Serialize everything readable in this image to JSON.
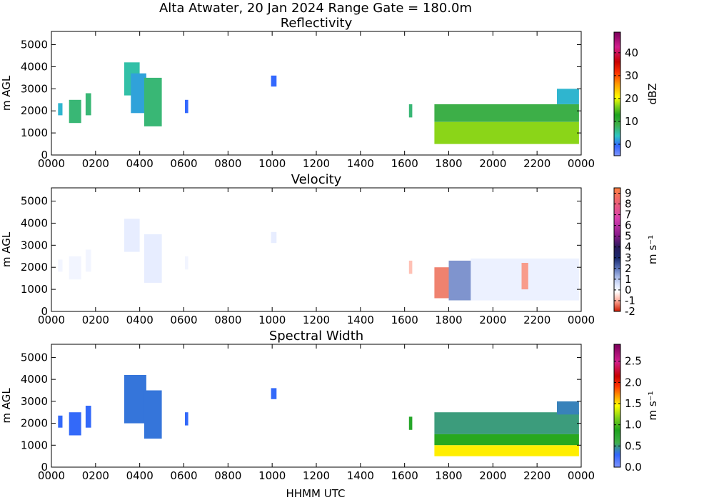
{
  "suptitle": "Alta Atwater, 20 Jan 2024 Range Gate = 180.0m",
  "x_ticks": [
    "0000",
    "0200",
    "0400",
    "0600",
    "0800",
    "1000",
    "1200",
    "1400",
    "1600",
    "1800",
    "2000",
    "2200",
    "0000"
  ],
  "y_ticks": [
    "0",
    "1000",
    "2000",
    "3000",
    "4000",
    "5000"
  ],
  "ylabel": "m AGL",
  "xlabel": "HHMM UTC",
  "colors": {
    "reflectivity_scale": [
      "#7f95ff",
      "#3366ff",
      "#2ec5c5",
      "#3fb04a",
      "#1ea31e",
      "#7fd11a",
      "#ffff00",
      "#ff9a00",
      "#ff3300",
      "#c80000",
      "#d21f8e",
      "#7a005a"
    ],
    "velocity_scale": [
      "#cc1a00",
      "#ffb0a0",
      "#ffffff",
      "#e0e8ff",
      "#a8b9e6",
      "#5a72b8",
      "#1a2a6e",
      "#2a1a5a",
      "#8b1a8b",
      "#d83fb0",
      "#ff8040"
    ],
    "spectral_width_scale": [
      "#7f95ff",
      "#3366ff",
      "#3fb04a",
      "#1ea31e",
      "#7fd11a",
      "#ffff00",
      "#ff9a00",
      "#ff3300",
      "#c80000",
      "#d21f8e",
      "#7a005a"
    ]
  },
  "chart_data": [
    {
      "type": "heatmap",
      "title": "Reflectivity",
      "xlabel": "",
      "ylabel": "m AGL",
      "ylim": [
        0,
        5600
      ],
      "colorbar": {
        "label": "dBZ",
        "range": [
          -5,
          49
        ],
        "ticks": [
          "0",
          "10",
          "20",
          "30",
          "40"
        ],
        "tick_values": [
          0,
          10,
          20,
          30,
          40
        ]
      },
      "regions": [
        {
          "t0": 0.3,
          "t1": 0.5,
          "h0": 1800,
          "h1": 2350,
          "value": 4
        },
        {
          "t0": 0.8,
          "t1": 1.35,
          "h0": 1450,
          "h1": 2500,
          "value": 8
        },
        {
          "t0": 1.55,
          "t1": 1.8,
          "h0": 1800,
          "h1": 2800,
          "value": 8
        },
        {
          "t0": 3.3,
          "t1": 4.0,
          "h0": 2700,
          "h1": 4200,
          "value": 6
        },
        {
          "t0": 3.6,
          "t1": 4.3,
          "h0": 1900,
          "h1": 3700,
          "value": 3
        },
        {
          "t0": 4.2,
          "t1": 5.0,
          "h0": 1300,
          "h1": 3500,
          "value": 8
        },
        {
          "t0": 6.05,
          "t1": 6.2,
          "h0": 1900,
          "h1": 2500,
          "value": 0
        },
        {
          "t0": 9.95,
          "t1": 10.2,
          "h0": 3100,
          "h1": 3600,
          "value": 0
        },
        {
          "t0": 16.2,
          "t1": 16.35,
          "h0": 1700,
          "h1": 2300,
          "value": 8
        },
        {
          "t0": 17.35,
          "t1": 23.9,
          "h0": 500,
          "h1": 1500,
          "value": 20
        },
        {
          "t0": 17.35,
          "t1": 23.9,
          "h0": 1500,
          "h1": 2300,
          "value": 10
        },
        {
          "t0": 22.9,
          "t1": 23.9,
          "h0": 2300,
          "h1": 3000,
          "value": 4
        }
      ]
    },
    {
      "type": "heatmap",
      "title": "Velocity",
      "xlabel": "",
      "ylabel": "m AGL",
      "ylim": [
        0,
        5600
      ],
      "colorbar": {
        "label": "m s⁻¹",
        "range": [
          -2,
          9.5
        ],
        "ticks": [
          "-2",
          "-1",
          "0",
          "1",
          "2",
          "3",
          "4",
          "5",
          "6",
          "7",
          "8",
          "9"
        ],
        "tick_values": [
          -2,
          -1,
          0,
          1,
          2,
          3,
          4,
          5,
          6,
          7,
          8,
          9
        ]
      },
      "regions": [
        {
          "t0": 0.3,
          "t1": 0.5,
          "h0": 1800,
          "h1": 2350,
          "value": 0.8
        },
        {
          "t0": 0.8,
          "t1": 1.35,
          "h0": 1450,
          "h1": 2500,
          "value": 0.8
        },
        {
          "t0": 1.55,
          "t1": 1.8,
          "h0": 1800,
          "h1": 2800,
          "value": 0.8
        },
        {
          "t0": 3.3,
          "t1": 4.0,
          "h0": 2700,
          "h1": 4200,
          "value": 1.2
        },
        {
          "t0": 4.2,
          "t1": 5.0,
          "h0": 1300,
          "h1": 3500,
          "value": 1.2
        },
        {
          "t0": 6.05,
          "t1": 6.2,
          "h0": 1900,
          "h1": 2500,
          "value": 0.8
        },
        {
          "t0": 9.95,
          "t1": 10.2,
          "h0": 3100,
          "h1": 3600,
          "value": 1.2
        },
        {
          "t0": 16.2,
          "t1": 16.35,
          "h0": 1700,
          "h1": 2300,
          "value": -0.6
        },
        {
          "t0": 17.35,
          "t1": 18.0,
          "h0": 600,
          "h1": 2000,
          "value": -1.2
        },
        {
          "t0": 18.0,
          "t1": 19.0,
          "h0": 500,
          "h1": 2300,
          "value": 3.2
        },
        {
          "t0": 19.0,
          "t1": 23.9,
          "h0": 500,
          "h1": 2400,
          "value": 1.0
        },
        {
          "t0": 21.3,
          "t1": 21.6,
          "h0": 1000,
          "h1": 2200,
          "value": -1.0
        }
      ]
    },
    {
      "type": "heatmap",
      "title": "Spectral Width",
      "xlabel": "HHMM UTC",
      "ylabel": "m AGL",
      "ylim": [
        0,
        5600
      ],
      "colorbar": {
        "label": "m s⁻¹",
        "range": [
          0,
          2.9
        ],
        "ticks": [
          "0.0",
          "0.5",
          "1.0",
          "1.5",
          "2.0",
          "2.5"
        ],
        "tick_values": [
          0,
          0.5,
          1.0,
          1.5,
          2.0,
          2.5
        ]
      },
      "regions": [
        {
          "t0": 0.3,
          "t1": 0.5,
          "h0": 1800,
          "h1": 2350,
          "value": 0.3
        },
        {
          "t0": 0.8,
          "t1": 1.35,
          "h0": 1450,
          "h1": 2500,
          "value": 0.3
        },
        {
          "t0": 1.55,
          "t1": 1.8,
          "h0": 1800,
          "h1": 2800,
          "value": 0.3
        },
        {
          "t0": 3.3,
          "t1": 4.3,
          "h0": 2000,
          "h1": 4200,
          "value": 0.35
        },
        {
          "t0": 4.2,
          "t1": 5.0,
          "h0": 1300,
          "h1": 3500,
          "value": 0.35
        },
        {
          "t0": 6.05,
          "t1": 6.2,
          "h0": 1900,
          "h1": 2500,
          "value": 0.3
        },
        {
          "t0": 9.95,
          "t1": 10.2,
          "h0": 3100,
          "h1": 3600,
          "value": 0.3
        },
        {
          "t0": 16.2,
          "t1": 16.35,
          "h0": 1700,
          "h1": 2300,
          "value": 0.8
        },
        {
          "t0": 17.35,
          "t1": 23.9,
          "h0": 1500,
          "h1": 2500,
          "value": 0.5
        },
        {
          "t0": 17.35,
          "t1": 23.9,
          "h0": 1000,
          "h1": 1500,
          "value": 0.9
        },
        {
          "t0": 17.35,
          "t1": 23.9,
          "h0": 500,
          "h1": 1000,
          "value": 1.5
        },
        {
          "t0": 22.9,
          "t1": 23.9,
          "h0": 2400,
          "h1": 3000,
          "value": 0.4
        }
      ]
    }
  ]
}
